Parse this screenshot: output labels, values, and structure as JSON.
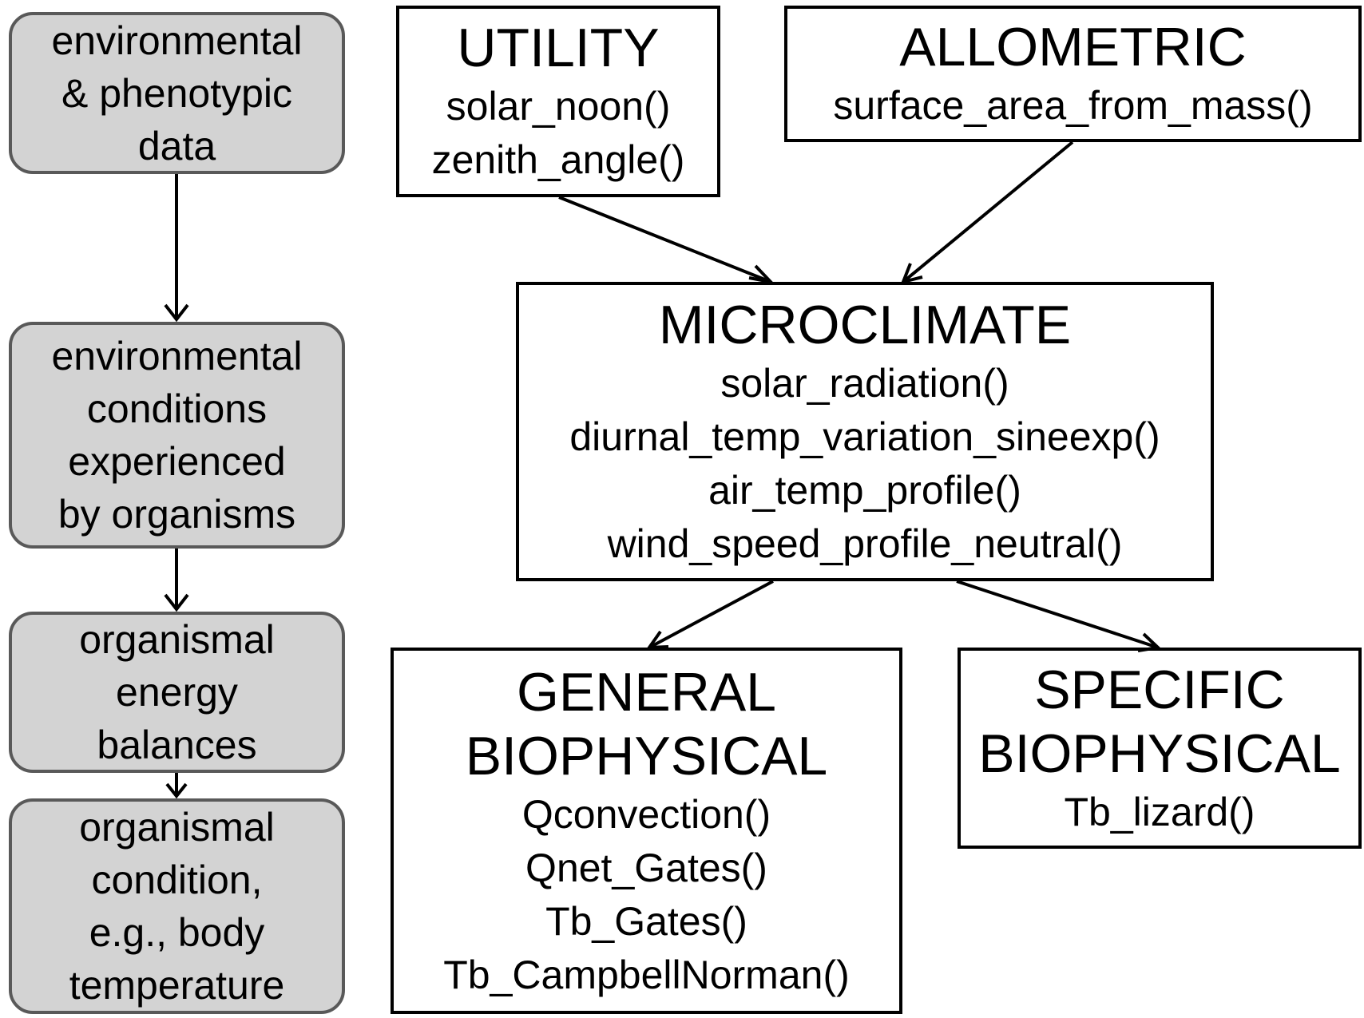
{
  "flow": [
    {
      "lines": [
        "environmental",
        "& phenotypic",
        "data"
      ]
    },
    {
      "lines": [
        "environmental",
        "conditions",
        "experienced",
        "by organisms"
      ]
    },
    {
      "lines": [
        "organismal",
        "energy",
        "balances"
      ]
    },
    {
      "lines": [
        "organismal",
        "condition,",
        "e.g., body",
        "temperature"
      ]
    }
  ],
  "modules": {
    "utility": {
      "title": [
        "UTILITY"
      ],
      "functions": [
        "solar_noon()",
        "zenith_angle()"
      ]
    },
    "allometric": {
      "title": [
        "ALLOMETRIC"
      ],
      "functions": [
        "surface_area_from_mass()"
      ]
    },
    "microclimate": {
      "title": [
        "MICROCLIMATE"
      ],
      "functions": [
        "solar_radiation()",
        "diurnal_temp_variation_sineexp()",
        "air_temp_profile()",
        "wind_speed_profile_neutral()"
      ]
    },
    "general": {
      "title": [
        "GENERAL",
        "BIOPHYSICAL"
      ],
      "functions": [
        "Qconvection()",
        "Qnet_Gates()",
        "Tb_Gates()",
        "Tb_CampbellNorman()"
      ]
    },
    "specific": {
      "title": [
        "SPECIFIC",
        "BIOPHYSICAL"
      ],
      "functions": [
        "Tb_lizard()"
      ]
    }
  }
}
